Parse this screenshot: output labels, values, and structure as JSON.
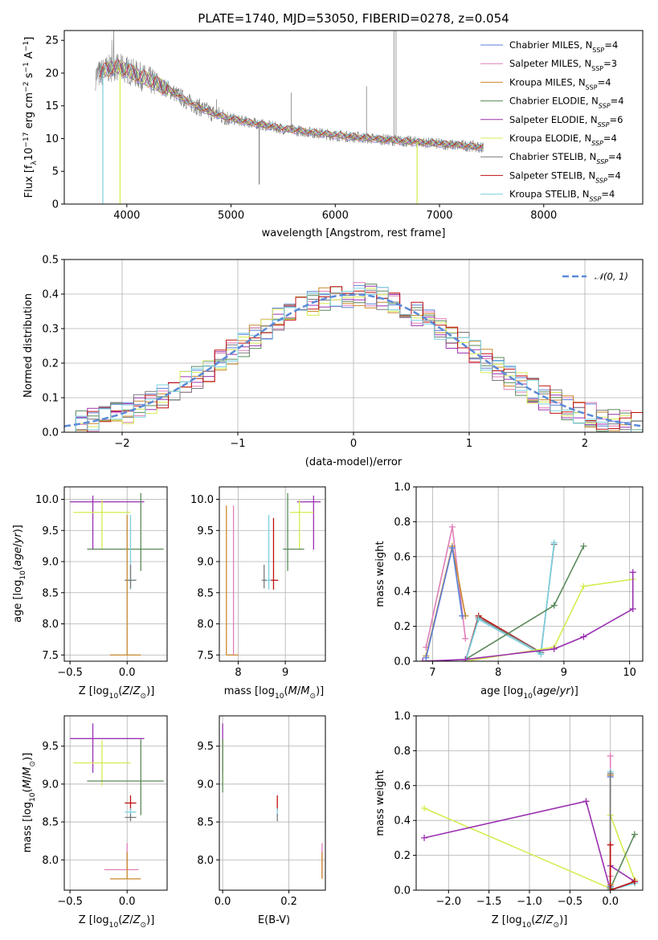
{
  "colors": {
    "Chabrier MILES": "#5b7fd8",
    "Salpeter MILES": "#e07fb8",
    "Kroupa MILES": "#c8882a",
    "Chabrier ELODIE": "#5a8a5a",
    "Salpeter ELODIE": "#9a30b0",
    "Kroupa ELODIE": "#d4ec50",
    "Chabrier STELIB": "#7a7a7a",
    "Salpeter STELIB": "#c01010",
    "Kroupa STELIB": "#7ad0e0"
  },
  "chart_data": [
    {
      "id": "spectrum",
      "type": "line",
      "title": "PLATE=1740, MJD=53050, FIBERID=0278, z=0.054",
      "xlabel": "wavelength [Angstrom, rest frame]",
      "ylabel": "Flux [fλ10⁻¹⁷ erg cm⁻² s⁻¹ A⁻¹]",
      "xlim": [
        3400,
        8950
      ],
      "ylim": [
        0,
        26.5
      ],
      "xticks": [
        4000,
        5000,
        6000,
        7000,
        8000
      ],
      "yticks": [
        0,
        5,
        10,
        15,
        20,
        25
      ],
      "grid": false,
      "legend_position": "top-right",
      "data_color": "#808080",
      "continuum": {
        "x": [
          3700,
          3800,
          3900,
          4000,
          4200,
          4400,
          4600,
          4800,
          5000,
          5500,
          6000,
          6500,
          7000,
          7400
        ],
        "y": [
          19.5,
          20.5,
          21,
          20.5,
          19,
          17.5,
          15.5,
          14,
          13,
          11.5,
          10.5,
          9.8,
          9.2,
          8.7
        ]
      },
      "emission_lines": [
        {
          "x": 6563,
          "peak": 26.5
        },
        {
          "x": 6583,
          "peak": 26.5
        },
        {
          "x": 6300,
          "peak": 18
        },
        {
          "x": 5577,
          "peak": 17
        },
        {
          "x": 4861,
          "peak": 16
        }
      ],
      "absorption_lines": [
        {
          "x": 3770,
          "min": 0
        },
        {
          "x": 3935,
          "min": 0
        },
        {
          "x": 5270,
          "min": 3
        },
        {
          "x": 6785,
          "min": 0
        }
      ],
      "spectrum_end": 7420,
      "legend": [
        {
          "base": "Chabrier MILES, N",
          "sub": "SSP",
          "tail": "=4"
        },
        {
          "base": "Salpeter MILES, N",
          "sub": "SSP",
          "tail": "=3"
        },
        {
          "base": "Kroupa MILES, N",
          "sub": "SSP",
          "tail": "=4"
        },
        {
          "base": "Chabrier ELODIE, N",
          "sub": "SSP",
          "tail": "=4"
        },
        {
          "base": "Salpeter ELODIE, N",
          "sub": "SSP",
          "tail": "=6"
        },
        {
          "base": "Kroupa ELODIE, N",
          "sub": "SSP",
          "tail": "=4"
        },
        {
          "base": "Chabrier STELIB, N",
          "sub": "SSP",
          "tail": "=4"
        },
        {
          "base": "Salpeter STELIB, N",
          "sub": "SSP",
          "tail": "=4"
        },
        {
          "base": "Kroupa STELIB, N",
          "sub": "SSP",
          "tail": "=4"
        }
      ]
    },
    {
      "id": "residuals",
      "type": "line",
      "xlabel": "(data-model)/error",
      "ylabel": "Normed distribution",
      "xlim": [
        -2.5,
        2.5
      ],
      "ylim": [
        0,
        0.5
      ],
      "xticks": [
        -2,
        -1,
        0,
        1,
        2
      ],
      "yticks": [
        0.0,
        0.1,
        0.2,
        0.3,
        0.4,
        0.5
      ],
      "grid": true,
      "legend_position": "top-right",
      "legend": "𝒩(0, 1)",
      "gaussian": {
        "mean": 0,
        "sigma": 1,
        "color": "#5b8ad8"
      },
      "histograms": {
        "bin_width": 0.1,
        "bin_start": -2.5,
        "n_bins": 50
      }
    },
    {
      "id": "age_vs_Z",
      "type": "scatter",
      "xlabel": "Z [log10(Z/Z⊙)]",
      "ylabel": "age  [log10(age/yr)]",
      "xlim": [
        -0.55,
        0.35
      ],
      "ylim": [
        7.4,
        10.2
      ],
      "xticks": [
        -0.5,
        0.0
      ],
      "yticks": [
        7.5,
        8.0,
        8.5,
        9.0,
        9.5,
        10.0
      ],
      "grid": true,
      "errorbars": [
        {
          "model": "Salpeter ELODIE",
          "x": -0.3,
          "xerr": [
            0.2,
            0.45
          ],
          "y": 9.96,
          "yerr": [
            0.77,
            0.1
          ]
        },
        {
          "model": "Kroupa ELODIE",
          "x": -0.22,
          "xerr": [
            0.25,
            0.25
          ],
          "y": 9.79,
          "yerr": [
            0.6,
            0.2
          ]
        },
        {
          "model": "Chabrier ELODIE",
          "x": 0.12,
          "xerr": [
            0.47,
            0.2
          ],
          "y": 9.2,
          "yerr": [
            0.35,
            0.9
          ]
        },
        {
          "model": "Kroupa STELIB",
          "x": 0.03,
          "xerr": [
            0.05,
            0.05
          ],
          "y": 8.7,
          "yerr": [
            0.15,
            1.05
          ]
        },
        {
          "model": "Chabrier STELIB",
          "x": 0.03,
          "xerr": [
            0.05,
            0.05
          ],
          "y": 8.7,
          "yerr": [
            0.13,
            0.25
          ]
        },
        {
          "model": "Kroupa MILES",
          "x": 0.0,
          "xerr": [
            0.15,
            0.12
          ],
          "y": 7.5,
          "yerr": [
            0.0,
            2.25
          ]
        }
      ]
    },
    {
      "id": "age_vs_mass",
      "type": "scatter",
      "xlabel": "mass [log10(M/M⊙)]",
      "ylim": [
        7.4,
        10.2
      ],
      "xlim": [
        7.6,
        9.85
      ],
      "xticks": [
        8,
        9
      ],
      "yticks": [
        7.5,
        8.0,
        8.5,
        9.0,
        9.5,
        10.0
      ],
      "grid": true,
      "errorbars": [
        {
          "model": "Salpeter ELODIE",
          "x": 9.6,
          "xerr": [
            0.35,
            0.15
          ],
          "y": 9.96,
          "yerr": [
            0.77,
            0.1
          ]
        },
        {
          "model": "Kroupa ELODIE",
          "x": 9.3,
          "xerr": [
            0.2,
            0.3
          ],
          "y": 9.79,
          "yerr": [
            0.6,
            0.2
          ]
        },
        {
          "model": "Chabrier ELODIE",
          "x": 9.05,
          "xerr": [
            0.1,
            0.35
          ],
          "y": 9.2,
          "yerr": [
            0.35,
            0.9
          ]
        },
        {
          "model": "Salpeter STELIB",
          "x": 8.75,
          "xerr": [
            0.1,
            0.1
          ],
          "y": 8.7,
          "yerr": [
            0.15,
            1.0
          ]
        },
        {
          "model": "Kroupa STELIB",
          "x": 8.65,
          "xerr": [
            0.1,
            0.05
          ],
          "y": 8.7,
          "yerr": [
            0.15,
            1.05
          ]
        },
        {
          "model": "Chabrier STELIB",
          "x": 8.55,
          "xerr": [
            0.05,
            0.05
          ],
          "y": 8.7,
          "yerr": [
            0.13,
            0.25
          ]
        },
        {
          "model": "Kroupa MILES",
          "x": 7.75,
          "xerr": [
            0.0,
            0.25
          ],
          "y": 7.5,
          "yerr": [
            0.0,
            2.4
          ]
        },
        {
          "model": "Salpeter MILES",
          "x": 7.9,
          "xerr": [
            0.0,
            0.0
          ],
          "y": 7.5,
          "yerr": [
            0.0,
            2.4
          ]
        }
      ]
    },
    {
      "id": "weight_vs_age",
      "type": "line",
      "xlabel": "age  [log10(age/yr)]",
      "ylabel": "mass weight",
      "xlim": [
        6.75,
        10.2
      ],
      "ylim": [
        0,
        1.0
      ],
      "xticks": [
        7,
        8,
        9,
        10
      ],
      "yticks": [
        0.0,
        0.2,
        0.4,
        0.6,
        0.8,
        1.0
      ],
      "grid": true,
      "series": [
        {
          "model": "Salpeter MILES",
          "x": [
            6.9,
            7.3,
            7.5
          ],
          "y": [
            0.08,
            0.77,
            0.13
          ]
        },
        {
          "model": "Kroupa MILES",
          "x": [
            6.9,
            7.3,
            7.5
          ],
          "y": [
            0.03,
            0.66,
            0.26
          ]
        },
        {
          "model": "Chabrier MILES",
          "x": [
            6.9,
            7.3,
            7.45
          ],
          "y": [
            0.02,
            0.65,
            0.26
          ]
        },
        {
          "model": "Salpeter STELIB",
          "x": [
            7.5,
            7.7,
            8.65
          ],
          "y": [
            0.0,
            0.26,
            0.05
          ]
        },
        {
          "model": "Chabrier STELIB",
          "x": [
            7.5,
            7.7,
            8.65,
            8.85
          ],
          "y": [
            0.0,
            0.25,
            0.05,
            0.67
          ]
        },
        {
          "model": "Kroupa STELIB",
          "x": [
            7.5,
            7.7,
            8.65,
            8.85
          ],
          "y": [
            0.0,
            0.24,
            0.04,
            0.68
          ]
        },
        {
          "model": "Chabrier ELODIE",
          "x": [
            7.5,
            8.85,
            9.3
          ],
          "y": [
            0.01,
            0.32,
            0.66
          ]
        },
        {
          "model": "Kroupa ELODIE",
          "x": [
            7.5,
            8.85,
            9.3,
            10.05
          ],
          "y": [
            0.0,
            0.08,
            0.43,
            0.47
          ]
        },
        {
          "model": "Salpeter ELODIE",
          "x": [
            6.85,
            7.5,
            8.85,
            9.3,
            10.05,
            10.05
          ],
          "y": [
            0.0,
            0.01,
            0.07,
            0.14,
            0.3,
            0.51
          ]
        }
      ]
    },
    {
      "id": "mass_vs_Z",
      "type": "scatter",
      "xlabel": "Z [log10(Z/Z⊙)]",
      "ylabel": "mass [log10(M/M⊙)]",
      "xlim": [
        -0.55,
        0.35
      ],
      "ylim": [
        7.6,
        9.9
      ],
      "xticks": [
        -0.5,
        0.0
      ],
      "yticks": [
        8.0,
        8.5,
        9.0,
        9.5
      ],
      "grid": true,
      "errorbars": [
        {
          "model": "Salpeter ELODIE",
          "x": -0.3,
          "xerr": [
            0.2,
            0.45
          ],
          "y": 9.6,
          "yerr": [
            0.45,
            0.2
          ]
        },
        {
          "model": "Kroupa ELODIE",
          "x": -0.22,
          "xerr": [
            0.25,
            0.25
          ],
          "y": 9.28,
          "yerr": [
            0.3,
            0.3
          ]
        },
        {
          "model": "Chabrier ELODIE",
          "x": 0.12,
          "xerr": [
            0.47,
            0.2
          ],
          "y": 9.04,
          "yerr": [
            0.45,
            0.55
          ]
        },
        {
          "model": "Salpeter STELIB",
          "x": 0.03,
          "xerr": [
            0.05,
            0.05
          ],
          "y": 8.75,
          "yerr": [
            0.1,
            0.1
          ]
        },
        {
          "model": "Kroupa STELIB",
          "x": 0.03,
          "xerr": [
            0.05,
            0.05
          ],
          "y": 8.63,
          "yerr": [
            0.1,
            0.05
          ]
        },
        {
          "model": "Chabrier STELIB",
          "x": 0.03,
          "xerr": [
            0.05,
            0.05
          ],
          "y": 8.56,
          "yerr": [
            0.05,
            0.05
          ]
        },
        {
          "model": "Salpeter MILES",
          "x": 0.0,
          "xerr": [
            0.2,
            0.1
          ],
          "y": 7.87,
          "yerr": [
            0.0,
            0.35
          ]
        },
        {
          "model": "Kroupa MILES",
          "x": 0.0,
          "xerr": [
            0.15,
            0.12
          ],
          "y": 7.75,
          "yerr": [
            0.0,
            0.35
          ]
        }
      ]
    },
    {
      "id": "mass_vs_EBV",
      "type": "scatter",
      "xlabel": "E(B-V)",
      "xlim": [
        -0.01,
        0.31
      ],
      "ylim": [
        7.6,
        9.9
      ],
      "xticks": [
        0.0,
        0.2
      ],
      "yticks": [
        8.0,
        8.5,
        9.0,
        9.5
      ],
      "grid": true,
      "errorbars": [
        {
          "model": "Salpeter ELODIE",
          "x": 0.0,
          "xerr": [
            0,
            0
          ],
          "y": 9.6,
          "yerr": [
            0.45,
            0.2
          ]
        },
        {
          "model": "Kroupa ELODIE",
          "x": 0.0,
          "xerr": [
            0,
            0
          ],
          "y": 9.28,
          "yerr": [
            0.3,
            0.3
          ]
        },
        {
          "model": "Chabrier ELODIE",
          "x": 0.0,
          "xerr": [
            0,
            0
          ],
          "y": 9.04,
          "yerr": [
            0.15,
            0.55
          ]
        },
        {
          "model": "Salpeter STELIB",
          "x": 0.165,
          "xerr": [
            0,
            0
          ],
          "y": 8.75,
          "yerr": [
            0.1,
            0.1
          ]
        },
        {
          "model": "Kroupa STELIB",
          "x": 0.165,
          "xerr": [
            0,
            0
          ],
          "y": 8.63,
          "yerr": [
            0.05,
            0.05
          ]
        },
        {
          "model": "Chabrier STELIB",
          "x": 0.165,
          "xerr": [
            0,
            0
          ],
          "y": 8.56,
          "yerr": [
            0.05,
            0.05
          ]
        },
        {
          "model": "Salpeter MILES",
          "x": 0.3,
          "xerr": [
            0,
            0
          ],
          "y": 7.87,
          "yerr": [
            0.1,
            0.35
          ]
        },
        {
          "model": "Kroupa MILES",
          "x": 0.3,
          "xerr": [
            0,
            0
          ],
          "y": 7.75,
          "yerr": [
            0.0,
            0.35
          ]
        }
      ]
    },
    {
      "id": "weight_vs_Z",
      "type": "line",
      "xlabel": "Z [log10(Z/Z⊙)]",
      "ylabel": "mass weight",
      "xlim": [
        -2.4,
        0.4
      ],
      "ylim": [
        0,
        1.0
      ],
      "xticks": [
        -2.0,
        -1.5,
        -1.0,
        -0.5,
        0.0
      ],
      "yticks": [
        0.0,
        0.2,
        0.4,
        0.6,
        0.8,
        1.0
      ],
      "grid": true,
      "series": [
        {
          "model": "Kroupa ELODIE",
          "x": [
            -2.3,
            0.0,
            0.0,
            0.3
          ],
          "y": [
            0.47,
            0.01,
            0.43,
            0.06
          ]
        },
        {
          "model": "Salpeter ELODIE",
          "x": [
            -2.3,
            -0.3,
            0.0,
            0.0,
            0.3
          ],
          "y": [
            0.3,
            0.51,
            0.0,
            0.14,
            0.05
          ]
        },
        {
          "model": "Chabrier ELODIE",
          "x": [
            0.0,
            0.0,
            0.3
          ],
          "y": [
            0.66,
            0.01,
            0.32
          ]
        },
        {
          "model": "Salpeter MILES",
          "x": [
            0.0,
            0.0
          ],
          "y": [
            0.77,
            0.08
          ]
        },
        {
          "model": "Kroupa MILES",
          "x": [
            0.0,
            0.0
          ],
          "y": [
            0.66,
            0.03
          ]
        },
        {
          "model": "Chabrier MILES",
          "x": [
            0.0,
            0.0
          ],
          "y": [
            0.65,
            0.02
          ]
        },
        {
          "model": "Kroupa STELIB",
          "x": [
            0.0,
            0.0,
            0.3
          ],
          "y": [
            0.68,
            0.0,
            0.04
          ]
        },
        {
          "model": "Chabrier STELIB",
          "x": [
            0.0,
            0.0,
            0.3
          ],
          "y": [
            0.67,
            0.0,
            0.05
          ]
        },
        {
          "model": "Salpeter STELIB",
          "x": [
            0.0,
            0.0,
            0.3
          ],
          "y": [
            0.26,
            0.0,
            0.05
          ]
        }
      ]
    }
  ]
}
